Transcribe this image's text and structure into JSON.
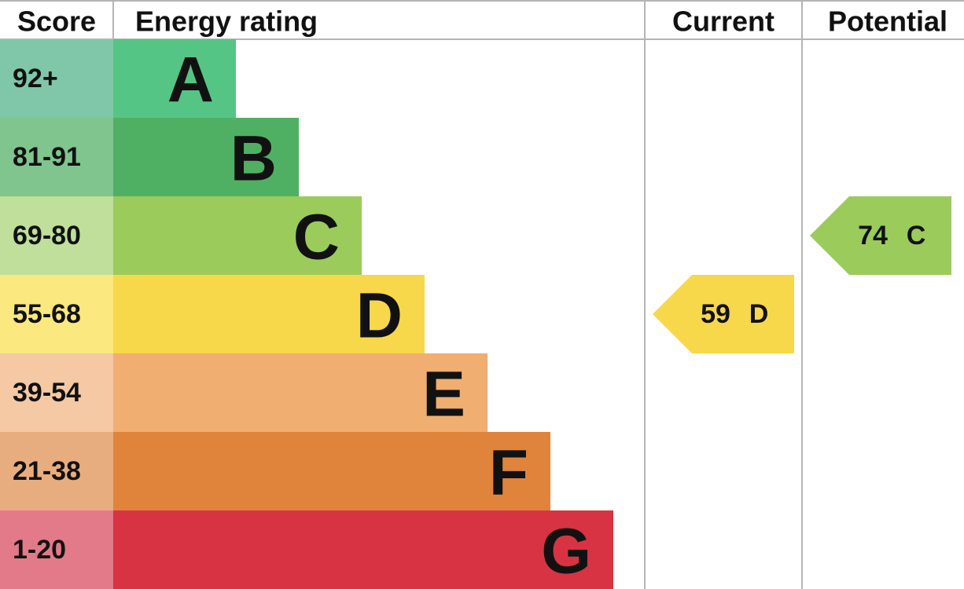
{
  "header": {
    "score": "Score",
    "energy_rating": "Energy rating",
    "current": "Current",
    "potential": "Potential"
  },
  "rows": [
    {
      "score": "92+",
      "letter": "A"
    },
    {
      "score": "81-91",
      "letter": "B"
    },
    {
      "score": "69-80",
      "letter": "C"
    },
    {
      "score": "55-68",
      "letter": "D"
    },
    {
      "score": "39-54",
      "letter": "E"
    },
    {
      "score": "21-38",
      "letter": "F"
    },
    {
      "score": "1-20",
      "letter": "G"
    }
  ],
  "current": {
    "value": "59",
    "letter": "D"
  },
  "potential": {
    "value": "74",
    "letter": "C"
  }
}
